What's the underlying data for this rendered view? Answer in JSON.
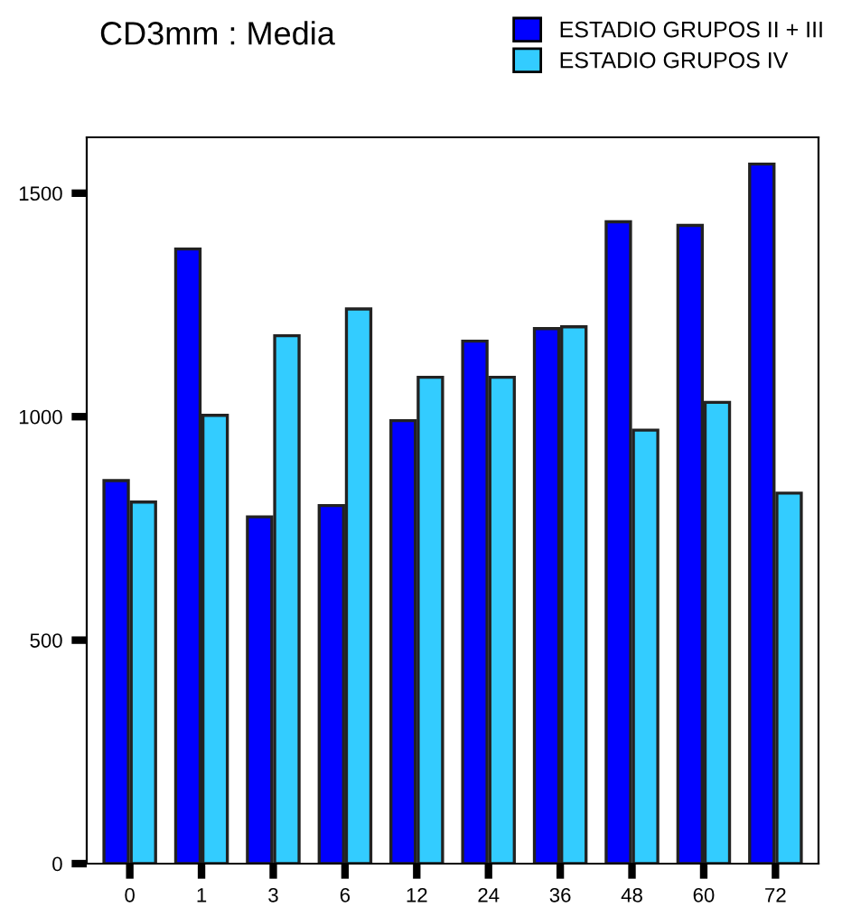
{
  "chart_data": {
    "type": "bar",
    "title": "CD3mm : Media",
    "categories": [
      "0",
      "1",
      "3",
      "6",
      "12",
      "24",
      "36",
      "48",
      "60",
      "72"
    ],
    "series": [
      {
        "name": "ESTADIO GRUPOS II + III",
        "color": "#0000ff",
        "values": [
          857,
          1375,
          776,
          801,
          991,
          1169,
          1197,
          1436,
          1428,
          1565
        ]
      },
      {
        "name": "ESTADIO GRUPOS IV",
        "color": "#33ccff",
        "values": [
          809,
          1003,
          1181,
          1241,
          1088,
          1088,
          1201,
          970,
          1032,
          829
        ]
      }
    ],
    "ylim": [
      0,
      1625
    ],
    "yticks": [
      0,
      500,
      1000,
      1500
    ],
    "grid": false,
    "legend": "top right"
  }
}
